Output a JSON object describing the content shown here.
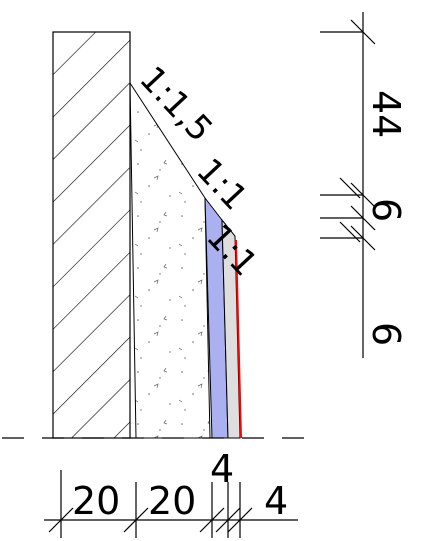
{
  "drawing": {
    "slope_labels": [
      "1:1,5",
      "1:1",
      "1:1"
    ],
    "right_dimensions": [
      "44",
      "6",
      "6"
    ],
    "bottom_dimensions": [
      "20",
      "20",
      "4",
      "4"
    ],
    "colors": {
      "line": "#000000",
      "blue_layer": "#aab0f0",
      "gray_layer": "#dedede",
      "red_edge": "#ff0000",
      "background": "#ffffff"
    }
  }
}
